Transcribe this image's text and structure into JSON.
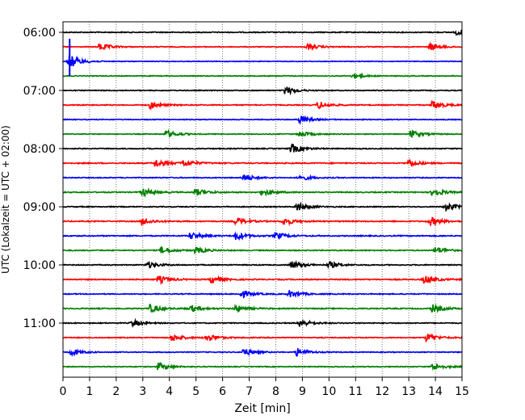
{
  "chart_data": {
    "type": "line",
    "title": "",
    "xlabel": "Zeit  [min]",
    "ylabel": "UTC (Lokalzeit = UTC + 02:00)",
    "xlim": [
      0,
      15
    ],
    "x_ticks": [
      "0",
      "1",
      "2",
      "3",
      "4",
      "5",
      "6",
      "7",
      "8",
      "9",
      "10",
      "11",
      "12",
      "13",
      "14",
      "15"
    ],
    "y_tick_labels": [
      "06:00",
      "07:00",
      "08:00",
      "09:00",
      "10:00",
      "11:00"
    ],
    "grid": "vertical dotted",
    "trace_interval_min": 15,
    "trace_colors_cycle": [
      "#000000",
      "#ff0000",
      "#0000ff",
      "#008000"
    ],
    "traces": [
      {
        "time": "06:00",
        "events": [
          [
            14.8,
            0.35
          ]
        ],
        "noise": 0.35
      },
      {
        "time": "06:15",
        "events": [
          [
            1.4,
            0.5
          ],
          [
            9.2,
            0.4
          ],
          [
            13.8,
            0.5
          ]
        ],
        "noise": 0.3
      },
      {
        "time": "06:30",
        "events": [
          [
            0.25,
            1.0
          ]
        ],
        "noise": 0.25
      },
      {
        "time": "06:45",
        "events": [
          [
            10.9,
            0.35
          ]
        ],
        "noise": 0.3
      },
      {
        "time": "07:00",
        "events": [
          [
            8.35,
            0.6
          ]
        ],
        "noise": 0.3
      },
      {
        "time": "07:15",
        "events": [
          [
            3.3,
            0.45
          ],
          [
            9.6,
            0.5
          ],
          [
            13.9,
            0.6
          ]
        ],
        "noise": 0.35
      },
      {
        "time": "07:30",
        "events": [
          [
            8.9,
            0.55
          ]
        ],
        "noise": 0.3
      },
      {
        "time": "07:45",
        "events": [
          [
            3.9,
            0.5
          ],
          [
            8.9,
            0.4
          ],
          [
            13.1,
            0.5
          ]
        ],
        "noise": 0.3
      },
      {
        "time": "08:00",
        "events": [
          [
            8.6,
            0.65
          ]
        ],
        "noise": 0.35
      },
      {
        "time": "08:15",
        "events": [
          [
            3.5,
            0.55
          ],
          [
            4.5,
            0.5
          ],
          [
            13.0,
            0.45
          ]
        ],
        "noise": 0.4
      },
      {
        "time": "08:30",
        "events": [
          [
            6.8,
            0.5
          ],
          [
            8.9,
            0.4
          ]
        ],
        "noise": 0.35
      },
      {
        "time": "08:45",
        "events": [
          [
            3.0,
            0.55
          ],
          [
            5.0,
            0.45
          ],
          [
            7.5,
            0.45
          ],
          [
            13.9,
            0.55
          ]
        ],
        "noise": 0.4
      },
      {
        "time": "09:00",
        "events": [
          [
            8.8,
            0.6
          ],
          [
            14.4,
            0.6
          ]
        ],
        "noise": 0.35
      },
      {
        "time": "09:15",
        "events": [
          [
            3.0,
            0.45
          ],
          [
            6.5,
            0.5
          ],
          [
            8.3,
            0.5
          ],
          [
            13.8,
            0.6
          ]
        ],
        "noise": 0.4
      },
      {
        "time": "09:30",
        "events": [
          [
            4.8,
            0.5
          ],
          [
            6.5,
            0.5
          ],
          [
            8.0,
            0.45
          ]
        ],
        "noise": 0.4
      },
      {
        "time": "09:45",
        "events": [
          [
            3.7,
            0.5
          ],
          [
            5.0,
            0.4
          ],
          [
            14.0,
            0.5
          ]
        ],
        "noise": 0.35
      },
      {
        "time": "10:00",
        "events": [
          [
            3.2,
            0.45
          ],
          [
            8.6,
            0.55
          ],
          [
            10.0,
            0.45
          ]
        ],
        "noise": 0.35
      },
      {
        "time": "10:15",
        "events": [
          [
            3.6,
            0.5
          ],
          [
            5.6,
            0.5
          ],
          [
            13.6,
            0.6
          ]
        ],
        "noise": 0.4
      },
      {
        "time": "10:30",
        "events": [
          [
            6.7,
            0.5
          ],
          [
            8.5,
            0.5
          ]
        ],
        "noise": 0.35
      },
      {
        "time": "10:45",
        "events": [
          [
            3.3,
            0.55
          ],
          [
            4.8,
            0.45
          ],
          [
            6.5,
            0.45
          ],
          [
            13.9,
            0.5
          ]
        ],
        "noise": 0.4
      },
      {
        "time": "11:00",
        "events": [
          [
            2.6,
            0.45
          ],
          [
            8.9,
            0.55
          ]
        ],
        "noise": 0.35
      },
      {
        "time": "11:15",
        "events": [
          [
            4.1,
            0.5
          ],
          [
            5.4,
            0.55
          ],
          [
            13.7,
            0.55
          ]
        ],
        "noise": 0.35
      },
      {
        "time": "11:30",
        "events": [
          [
            0.3,
            0.5
          ],
          [
            6.8,
            0.5
          ],
          [
            8.8,
            0.55
          ]
        ],
        "noise": 0.3
      },
      {
        "time": "11:45",
        "events": [
          [
            3.6,
            0.55
          ],
          [
            13.9,
            0.5
          ]
        ],
        "noise": 0.3
      }
    ]
  }
}
